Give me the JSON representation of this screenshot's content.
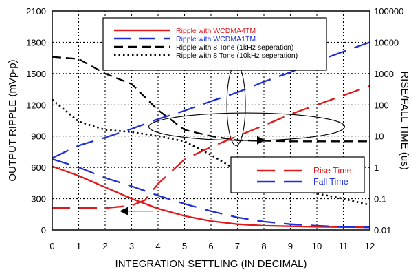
{
  "chart_data": {
    "type": "line",
    "title": "",
    "xlabel": "INTEGRATION SETTLING (IN DECIMAL)",
    "ylabel": "OUTPUT RIPPLE (mVp-p)",
    "y2label": "RISE/FALL TIME (us)",
    "xlim": [
      0,
      12
    ],
    "ylim": [
      0,
      2100
    ],
    "y2lim": [
      0.01,
      100000
    ],
    "y2scale": "log",
    "grid": true,
    "x_ticks": [
      "0",
      "1",
      "2",
      "3",
      "4",
      "5",
      "6",
      "7",
      "8",
      "9",
      "10",
      "11",
      "12"
    ],
    "y_ticks": [
      "0",
      "300",
      "600",
      "900",
      "1200",
      "1500",
      "1800",
      "2100"
    ],
    "y2_ticks": [
      "0.01",
      "0.1",
      "1",
      "10",
      "100",
      "1000",
      "10000",
      "100000"
    ],
    "legend_position": "top-center",
    "legend2_position": "right",
    "series": [
      {
        "name": "Ripple with WCDMA4TM",
        "axis": "left",
        "color": "#e0191b",
        "dash": "solid",
        "x": [
          0,
          1,
          2,
          3,
          4,
          5,
          6,
          7,
          8,
          9,
          10,
          11,
          12
        ],
        "y": [
          610,
          520,
          410,
          300,
          205,
          135,
          85,
          55,
          40,
          35,
          30,
          28,
          25
        ]
      },
      {
        "name": "Ripple with WCDMA1TM",
        "axis": "left",
        "color": "#1f2fd6",
        "dash": "longdash",
        "x": [
          0,
          1,
          2,
          3,
          4,
          5,
          6,
          7,
          8,
          9,
          10,
          11,
          12
        ],
        "y": [
          680,
          600,
          500,
          420,
          330,
          250,
          180,
          120,
          80,
          55,
          40,
          30,
          25
        ]
      },
      {
        "name": "Ripple with 8 Tone (1kHz seperation)",
        "axis": "left",
        "color": "#000000",
        "dash": "dash",
        "x": [
          0,
          1,
          2,
          3,
          4,
          5,
          6,
          7,
          8,
          9,
          10,
          11,
          12
        ],
        "y": [
          1660,
          1640,
          1500,
          1400,
          1150,
          960,
          900,
          860,
          855,
          850,
          850,
          850,
          850
        ]
      },
      {
        "name": "Ripple with 8 Tone (10kHz seperation)",
        "axis": "left",
        "color": "#000000",
        "dash": "dot",
        "x": [
          0,
          1,
          2,
          3,
          4,
          5,
          6,
          7,
          8,
          9,
          10,
          11,
          12
        ],
        "y": [
          1250,
          1040,
          960,
          940,
          900,
          850,
          720,
          570,
          480,
          410,
          350,
          300,
          240
        ]
      },
      {
        "name": "Rise Time",
        "axis": "right",
        "color": "#e0191b",
        "dash": "longdash",
        "x": [
          0,
          1,
          2,
          3,
          3.5,
          4,
          5,
          6,
          7,
          8,
          9,
          10,
          11,
          12
        ],
        "y": [
          0.05,
          0.05,
          0.05,
          0.06,
          0.09,
          0.3,
          1.8,
          4.5,
          10,
          22,
          50,
          100,
          200,
          400
        ]
      },
      {
        "name": "Fall Time",
        "axis": "right",
        "color": "#1f2fd6",
        "dash": "longdash",
        "x": [
          0,
          1,
          2,
          3,
          4,
          5,
          6,
          7,
          8,
          9,
          10,
          11,
          12
        ],
        "y": [
          2,
          5,
          9,
          17,
          35,
          65,
          130,
          250,
          550,
          1100,
          2500,
          5000,
          10000
        ]
      }
    ],
    "annotations": [
      {
        "type": "ellipse",
        "cx": 6.95,
        "cy": 1200,
        "rx": 0.35,
        "ry": 390,
        "axis": "left"
      },
      {
        "type": "arrow",
        "x1": 6.8,
        "y1": 860,
        "x2": 8.0,
        "y2": 860,
        "axis": "left"
      },
      {
        "type": "ellipse",
        "cx": 7.35,
        "cy": 20,
        "rx": 3.7,
        "ry": 0.44,
        "axis": "right-log"
      },
      {
        "type": "arrow",
        "x1": 3.8,
        "y1": 0.04,
        "x2": 2.6,
        "y2": 0.04,
        "axis": "right"
      }
    ]
  }
}
